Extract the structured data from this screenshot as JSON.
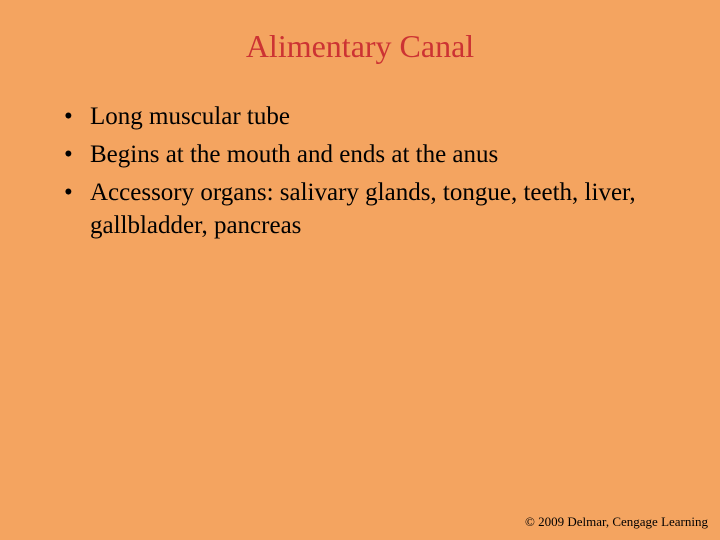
{
  "slide": {
    "background_color": "#f4a460",
    "title": {
      "text": "Alimentary Canal",
      "color": "#cc3333",
      "fontsize": 32,
      "font_family": "Times New Roman"
    },
    "bullets": [
      "Long muscular tube",
      "Begins at the mouth and ends at the anus",
      "Accessory organs: salivary glands, tongue, teeth, liver, gallbladder, pancreas"
    ],
    "bullet_style": {
      "color": "#000000",
      "fontsize": 25,
      "font_family": "Times New Roman"
    },
    "copyright": {
      "text": "© 2009 Delmar, Cengage Learning",
      "color": "#000000",
      "fontsize": 13
    }
  }
}
